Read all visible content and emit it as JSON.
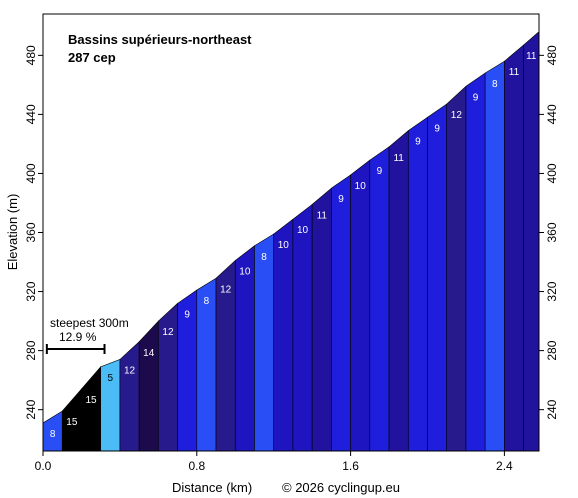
{
  "chart_data": {
    "type": "area",
    "title": "Bassins supérieurs-northeast",
    "subtitle": "287 cep",
    "xlabel": "Distance (km)",
    "ylabel": "Elevation (m)",
    "copyright": "© 2026 cyclingup.eu",
    "xlim": [
      0,
      2.58
    ],
    "ylim": [
      212,
      508
    ],
    "xticks": [
      0.0,
      0.8,
      1.6,
      2.4
    ],
    "xtick_labels": [
      "0.0",
      "0.8",
      "1.6",
      "2.4"
    ],
    "yticks": [
      240,
      280,
      320,
      360,
      400,
      440,
      480
    ],
    "steepest": {
      "label": "steepest 300m",
      "value": "12.9 %",
      "x_start": 0.02,
      "x_end": 0.32
    },
    "segments": [
      {
        "x0": 0.0,
        "x1": 0.1,
        "y0": 231,
        "y1": 239,
        "grade": "8",
        "color": "#2a4ef5",
        "dark_label": false
      },
      {
        "x0": 0.1,
        "x1": 0.2,
        "y0": 239,
        "y1": 254,
        "grade": "15",
        "color": "#000000",
        "dark_label": false
      },
      {
        "x0": 0.2,
        "x1": 0.3,
        "y0": 254,
        "y1": 269,
        "grade": "15",
        "color": "#000000",
        "dark_label": false
      },
      {
        "x0": 0.3,
        "x1": 0.4,
        "y0": 269,
        "y1": 274,
        "grade": "5",
        "color": "#4bbcf5",
        "dark_label": true
      },
      {
        "x0": 0.4,
        "x1": 0.5,
        "y0": 274,
        "y1": 286,
        "grade": "12",
        "color": "#261a8c",
        "dark_label": false
      },
      {
        "x0": 0.5,
        "x1": 0.6,
        "y0": 286,
        "y1": 300,
        "grade": "14",
        "color": "#1d0a4c",
        "dark_label": false
      },
      {
        "x0": 0.6,
        "x1": 0.7,
        "y0": 300,
        "y1": 312,
        "grade": "12",
        "color": "#261a8c",
        "dark_label": false
      },
      {
        "x0": 0.7,
        "x1": 0.8,
        "y0": 312,
        "y1": 321,
        "grade": "9",
        "color": "#1e1edc",
        "dark_label": false
      },
      {
        "x0": 0.8,
        "x1": 0.9,
        "y0": 321,
        "y1": 329,
        "grade": "8",
        "color": "#2a4ef5",
        "dark_label": false
      },
      {
        "x0": 0.9,
        "x1": 1.0,
        "y0": 329,
        "y1": 341,
        "grade": "12",
        "color": "#261a8c",
        "dark_label": false
      },
      {
        "x0": 1.0,
        "x1": 1.1,
        "y0": 341,
        "y1": 351,
        "grade": "10",
        "color": "#1e14c0",
        "dark_label": false
      },
      {
        "x0": 1.1,
        "x1": 1.2,
        "y0": 351,
        "y1": 359,
        "grade": "8",
        "color": "#2a4ef5",
        "dark_label": false
      },
      {
        "x0": 1.2,
        "x1": 1.3,
        "y0": 359,
        "y1": 369,
        "grade": "10",
        "color": "#1e14c0",
        "dark_label": false
      },
      {
        "x0": 1.3,
        "x1": 1.4,
        "y0": 369,
        "y1": 379,
        "grade": "10",
        "color": "#1e14c0",
        "dark_label": false
      },
      {
        "x0": 1.4,
        "x1": 1.5,
        "y0": 379,
        "y1": 390,
        "grade": "11",
        "color": "#22139e",
        "dark_label": false
      },
      {
        "x0": 1.5,
        "x1": 1.6,
        "y0": 390,
        "y1": 399,
        "grade": "9",
        "color": "#1e1edc",
        "dark_label": false
      },
      {
        "x0": 1.6,
        "x1": 1.7,
        "y0": 399,
        "y1": 409,
        "grade": "10",
        "color": "#1e14c0",
        "dark_label": false
      },
      {
        "x0": 1.7,
        "x1": 1.8,
        "y0": 409,
        "y1": 418,
        "grade": "9",
        "color": "#1e1edc",
        "dark_label": false
      },
      {
        "x0": 1.8,
        "x1": 1.9,
        "y0": 418,
        "y1": 429,
        "grade": "11",
        "color": "#22139e",
        "dark_label": false
      },
      {
        "x0": 1.9,
        "x1": 2.0,
        "y0": 429,
        "y1": 438,
        "grade": "9",
        "color": "#1e1edc",
        "dark_label": false
      },
      {
        "x0": 2.0,
        "x1": 2.1,
        "y0": 438,
        "y1": 447,
        "grade": "9",
        "color": "#1e1edc",
        "dark_label": false
      },
      {
        "x0": 2.1,
        "x1": 2.2,
        "y0": 447,
        "y1": 459,
        "grade": "12",
        "color": "#261a8c",
        "dark_label": false
      },
      {
        "x0": 2.2,
        "x1": 2.3,
        "y0": 459,
        "y1": 468,
        "grade": "9",
        "color": "#1e1edc",
        "dark_label": false
      },
      {
        "x0": 2.3,
        "x1": 2.4,
        "y0": 468,
        "y1": 476,
        "grade": "8",
        "color": "#2a4ef5",
        "dark_label": false
      },
      {
        "x0": 2.4,
        "x1": 2.5,
        "y0": 476,
        "y1": 487,
        "grade": "11",
        "color": "#22139e",
        "dark_label": false
      },
      {
        "x0": 2.5,
        "x1": 2.58,
        "y0": 487,
        "y1": 496,
        "grade": "11",
        "color": "#22139e",
        "dark_label": false
      }
    ]
  }
}
